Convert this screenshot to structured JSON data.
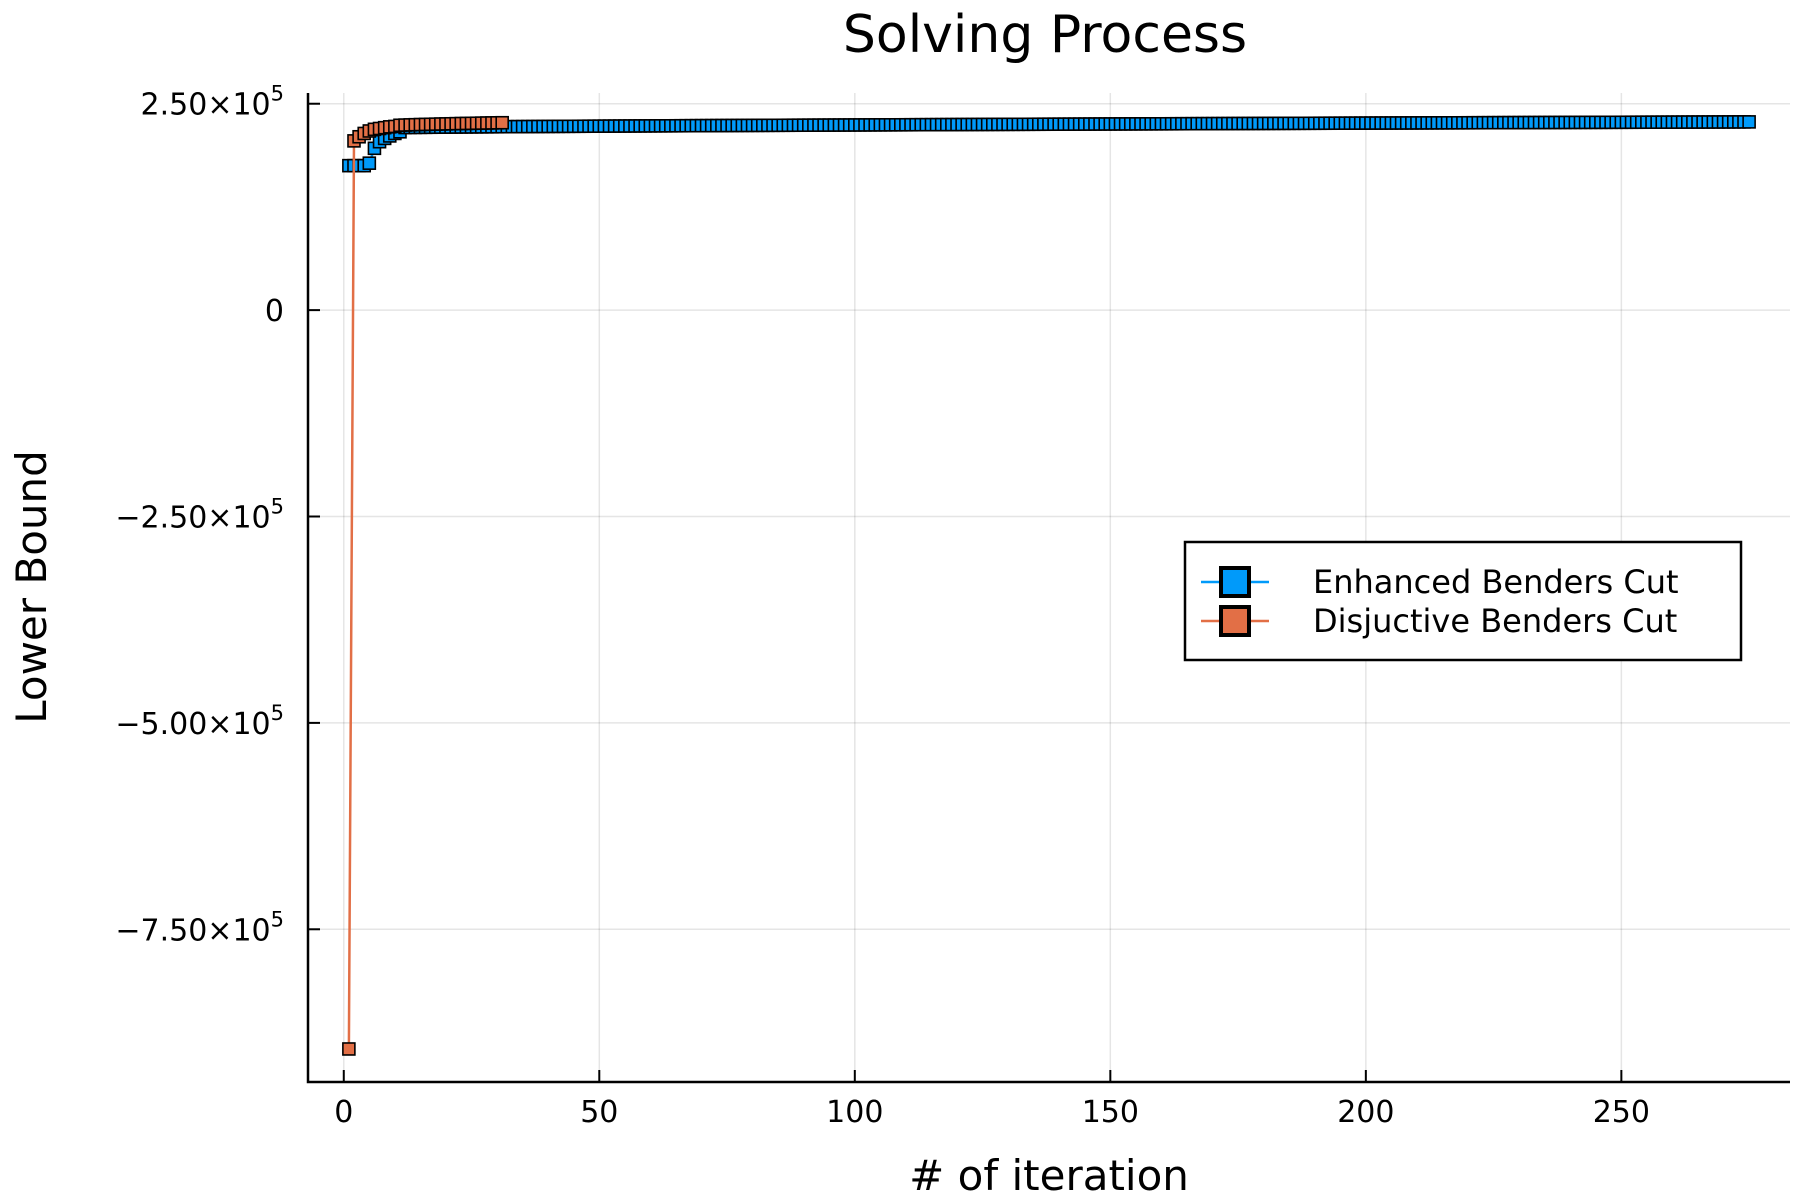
{
  "chart_data": {
    "type": "line",
    "title": "Solving Process",
    "xlabel": "# of iteration",
    "ylabel": "Lower Bound",
    "xlim": [
      -7,
      283
    ],
    "ylim": [
      -935000,
      263000
    ],
    "grid": true,
    "legend_position": "right",
    "x_ticks": [
      {
        "value": 0,
        "label": "0"
      },
      {
        "value": 50,
        "label": "50"
      },
      {
        "value": 100,
        "label": "100"
      },
      {
        "value": 150,
        "label": "150"
      },
      {
        "value": 200,
        "label": "200"
      },
      {
        "value": 250,
        "label": "250"
      }
    ],
    "y_ticks": [
      {
        "value": 250000,
        "mantissa": "2.50×10",
        "exp": "5"
      },
      {
        "value": 0,
        "mantissa": "0",
        "exp": ""
      },
      {
        "value": -250000,
        "mantissa": "−2.50×10",
        "exp": "5"
      },
      {
        "value": -500000,
        "mantissa": "−5.00×10",
        "exp": "5"
      },
      {
        "value": -750000,
        "mantissa": "−7.50×10",
        "exp": "5"
      }
    ],
    "series": [
      {
        "name": "Enhanced Benders Cut",
        "color": "#009AFA",
        "marker": "square",
        "shape": {
          "n": 275,
          "start": [
            175000,
            175000,
            175000,
            175000,
            178000,
            196000,
            204000,
            208000,
            211000,
            214000,
            216000
          ],
          "plateau": 221000,
          "end": 228000
        }
      },
      {
        "name": "Disjuctive Benders Cut",
        "color": "#E26F46",
        "marker": "square",
        "shape": {
          "n": 31,
          "start": [
            -895000,
            205000,
            210000,
            214000,
            217000,
            219000,
            220000,
            221000,
            222000,
            222500
          ],
          "plateau": 223500,
          "end": 227000
        }
      }
    ]
  }
}
